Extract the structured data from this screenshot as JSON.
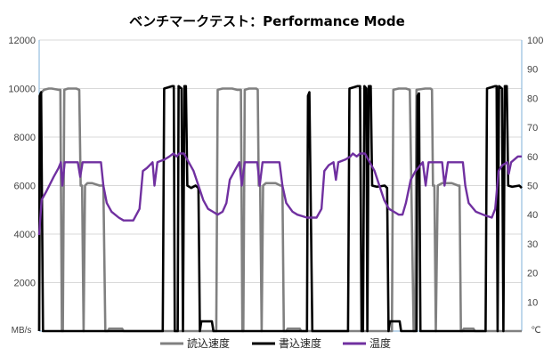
{
  "chart_data": {
    "type": "line",
    "title": "ベンチマークテスト：Performance Mode",
    "y_left": {
      "unit": "MB/s",
      "range": [
        0,
        12000
      ],
      "ticks": [
        2000,
        4000,
        6000,
        8000,
        10000,
        12000
      ]
    },
    "y_right": {
      "unit": "℃",
      "range": [
        0,
        100
      ],
      "ticks": [
        10,
        20,
        30,
        40,
        50,
        60,
        70,
        80,
        90,
        100
      ]
    },
    "x": {
      "range": [
        0,
        100
      ]
    },
    "grid": true,
    "legend": "bottom",
    "colors": {
      "read": "#808080",
      "write": "#000000",
      "temp": "#7030a0"
    },
    "series": [
      {
        "name": "読込速度",
        "axis": "left",
        "points": [
          [
            0,
            0
          ],
          [
            0.3,
            9800
          ],
          [
            1.0,
            9950
          ],
          [
            2.0,
            10000
          ],
          [
            2.6,
            10000
          ],
          [
            4.0,
            9950
          ],
          [
            4.4,
            9950
          ],
          [
            4.7,
            0
          ],
          [
            4.9,
            0
          ],
          [
            5.2,
            9950
          ],
          [
            6.0,
            10000
          ],
          [
            7.7,
            10000
          ],
          [
            8.3,
            9950
          ],
          [
            8.6,
            6000
          ],
          [
            8.9,
            6000
          ],
          [
            9.2,
            0
          ],
          [
            9.5,
            6000
          ],
          [
            10.0,
            6100
          ],
          [
            11.0,
            6100
          ],
          [
            12.5,
            6000
          ],
          [
            13.3,
            6000
          ],
          [
            13.7,
            0
          ],
          [
            14.2,
            0
          ],
          [
            14.5,
            100
          ],
          [
            17.2,
            100
          ],
          [
            17.5,
            0
          ],
          [
            36.7,
            0
          ],
          [
            37.0,
            9950
          ],
          [
            38.0,
            10000
          ],
          [
            40.0,
            10000
          ],
          [
            41.0,
            9950
          ],
          [
            41.8,
            9950
          ],
          [
            42.1,
            0
          ],
          [
            42.3,
            0
          ],
          [
            42.6,
            9950
          ],
          [
            43.5,
            10000
          ],
          [
            45.0,
            10000
          ],
          [
            45.3,
            9950
          ],
          [
            45.5,
            6000
          ],
          [
            45.8,
            6000
          ],
          [
            46.1,
            0
          ],
          [
            46.4,
            6000
          ],
          [
            47.0,
            6100
          ],
          [
            49.0,
            6100
          ],
          [
            50.0,
            6000
          ],
          [
            50.4,
            6000
          ],
          [
            50.7,
            0
          ],
          [
            51.2,
            0
          ],
          [
            51.5,
            100
          ],
          [
            54.0,
            100
          ],
          [
            54.3,
            0
          ],
          [
            73.1,
            0
          ],
          [
            73.4,
            9950
          ],
          [
            74.5,
            10000
          ],
          [
            76.0,
            10000
          ],
          [
            76.8,
            9950
          ],
          [
            77.6,
            0
          ],
          [
            77.9,
            0
          ],
          [
            78.2,
            9950
          ],
          [
            80.0,
            10000
          ],
          [
            81.1,
            10000
          ],
          [
            81.4,
            9950
          ],
          [
            81.6,
            6000
          ],
          [
            81.9,
            6000
          ],
          [
            82.2,
            0
          ],
          [
            82.6,
            6000
          ],
          [
            83.5,
            6100
          ],
          [
            85.5,
            6100
          ],
          [
            86.8,
            6000
          ],
          [
            87.1,
            6000
          ],
          [
            87.4,
            0
          ],
          [
            87.7,
            0
          ],
          [
            88.0,
            100
          ],
          [
            90.0,
            100
          ],
          [
            90.3,
            0
          ],
          [
            100,
            0
          ]
        ]
      },
      {
        "name": "書込速度",
        "axis": "left",
        "points": [
          [
            0,
            0
          ],
          [
            0.1,
            9700
          ],
          [
            0.4,
            9850
          ],
          [
            0.8,
            0
          ],
          [
            25.6,
            0
          ],
          [
            25.9,
            10000
          ],
          [
            27.6,
            10100
          ],
          [
            27.9,
            10100
          ],
          [
            28.1,
            0
          ],
          [
            28.7,
            0
          ],
          [
            28.9,
            10100
          ],
          [
            29.5,
            10000
          ],
          [
            29.8,
            0
          ],
          [
            30.1,
            10100
          ],
          [
            30.4,
            10100
          ],
          [
            30.7,
            6000
          ],
          [
            31.5,
            5900
          ],
          [
            32.4,
            6000
          ],
          [
            33.0,
            5900
          ],
          [
            33.3,
            0
          ],
          [
            33.6,
            400
          ],
          [
            35.8,
            400
          ],
          [
            36.1,
            0
          ],
          [
            55.5,
            0
          ],
          [
            55.7,
            9700
          ],
          [
            56.0,
            9850
          ],
          [
            56.6,
            0
          ],
          [
            64.0,
            0
          ],
          [
            64.3,
            10000
          ],
          [
            66.0,
            10100
          ],
          [
            66.5,
            10100
          ],
          [
            66.8,
            0
          ],
          [
            67.1,
            0
          ],
          [
            67.4,
            10100
          ],
          [
            67.8,
            10000
          ],
          [
            68.0,
            0
          ],
          [
            68.3,
            10100
          ],
          [
            68.7,
            10100
          ],
          [
            69.0,
            6000
          ],
          [
            70.0,
            5950
          ],
          [
            71.6,
            6000
          ],
          [
            72.1,
            5900
          ],
          [
            72.4,
            0
          ],
          [
            72.7,
            400
          ],
          [
            74.7,
            400
          ],
          [
            75.0,
            0
          ],
          [
            78.2,
            0
          ],
          [
            78.4,
            9700
          ],
          [
            78.7,
            9800
          ],
          [
            79.0,
            0
          ],
          [
            92.5,
            0
          ],
          [
            92.8,
            10000
          ],
          [
            94.5,
            10100
          ],
          [
            94.8,
            10100
          ],
          [
            95.0,
            0
          ],
          [
            95.3,
            10100
          ],
          [
            95.9,
            10000
          ],
          [
            96.2,
            0
          ],
          [
            96.5,
            10100
          ],
          [
            96.9,
            10100
          ],
          [
            97.2,
            6000
          ],
          [
            98.0,
            5950
          ],
          [
            99.5,
            6000
          ],
          [
            100,
            5900
          ]
        ]
      },
      {
        "name": "温度",
        "axis": "right",
        "points": [
          [
            0,
            33
          ],
          [
            0.5,
            45
          ],
          [
            1.5,
            48
          ],
          [
            3.0,
            53
          ],
          [
            4.0,
            56
          ],
          [
            4.5,
            58
          ],
          [
            4.8,
            50
          ],
          [
            5.3,
            58
          ],
          [
            7.0,
            58
          ],
          [
            8.0,
            58
          ],
          [
            8.5,
            53
          ],
          [
            9.0,
            58
          ],
          [
            11.0,
            58
          ],
          [
            12.8,
            58
          ],
          [
            13.3,
            50
          ],
          [
            14.0,
            44
          ],
          [
            15.0,
            41
          ],
          [
            16.5,
            39
          ],
          [
            17.5,
            38
          ],
          [
            19.5,
            38
          ],
          [
            20.8,
            42
          ],
          [
            21.5,
            55
          ],
          [
            22.3,
            56
          ],
          [
            23.5,
            58
          ],
          [
            23.9,
            50
          ],
          [
            24.5,
            58
          ],
          [
            26.0,
            59
          ],
          [
            27.0,
            60
          ],
          [
            27.8,
            61
          ],
          [
            28.5,
            60
          ],
          [
            29.0,
            61
          ],
          [
            30.0,
            61
          ],
          [
            31.0,
            58
          ],
          [
            32.0,
            55
          ],
          [
            33.0,
            50
          ],
          [
            34.0,
            45
          ],
          [
            35.0,
            42
          ],
          [
            36.0,
            41
          ],
          [
            37.0,
            40
          ],
          [
            38.0,
            41
          ],
          [
            38.8,
            44
          ],
          [
            39.5,
            52
          ],
          [
            40.5,
            55
          ],
          [
            41.5,
            58
          ],
          [
            42.0,
            50
          ],
          [
            42.6,
            58
          ],
          [
            44.0,
            58
          ],
          [
            45.2,
            58
          ],
          [
            45.7,
            50
          ],
          [
            46.3,
            58
          ],
          [
            48.0,
            58
          ],
          [
            49.8,
            58
          ],
          [
            50.4,
            50
          ],
          [
            51.2,
            44
          ],
          [
            52.5,
            41
          ],
          [
            53.5,
            40
          ],
          [
            55.5,
            39
          ],
          [
            57.5,
            39
          ],
          [
            58.5,
            42
          ],
          [
            59.1,
            55
          ],
          [
            60.0,
            57
          ],
          [
            61.0,
            58
          ],
          [
            61.5,
            52
          ],
          [
            62.0,
            58
          ],
          [
            63.5,
            59
          ],
          [
            64.5,
            60
          ],
          [
            65.0,
            61
          ],
          [
            65.8,
            60
          ],
          [
            66.5,
            61
          ],
          [
            67.5,
            61
          ],
          [
            68.5,
            58
          ],
          [
            69.5,
            55
          ],
          [
            70.5,
            50
          ],
          [
            71.5,
            45
          ],
          [
            72.5,
            42
          ],
          [
            73.5,
            41
          ],
          [
            74.5,
            40
          ],
          [
            75.3,
            40
          ],
          [
            76.0,
            44
          ],
          [
            77.0,
            52
          ],
          [
            78.0,
            55
          ],
          [
            79.5,
            58
          ],
          [
            80.1,
            50
          ],
          [
            80.7,
            58
          ],
          [
            82.0,
            58
          ],
          [
            83.5,
            58
          ],
          [
            84.0,
            50
          ],
          [
            84.7,
            58
          ],
          [
            86.5,
            58
          ],
          [
            87.8,
            58
          ],
          [
            88.3,
            50
          ],
          [
            89.0,
            44
          ],
          [
            90.5,
            41
          ],
          [
            92.0,
            40
          ],
          [
            93.8,
            39
          ],
          [
            94.5,
            42
          ],
          [
            95.2,
            55
          ],
          [
            96.0,
            57
          ],
          [
            97.0,
            58
          ],
          [
            97.3,
            54
          ],
          [
            97.8,
            58
          ],
          [
            98.5,
            59
          ],
          [
            99.2,
            60
          ],
          [
            100,
            60
          ]
        ]
      }
    ]
  }
}
